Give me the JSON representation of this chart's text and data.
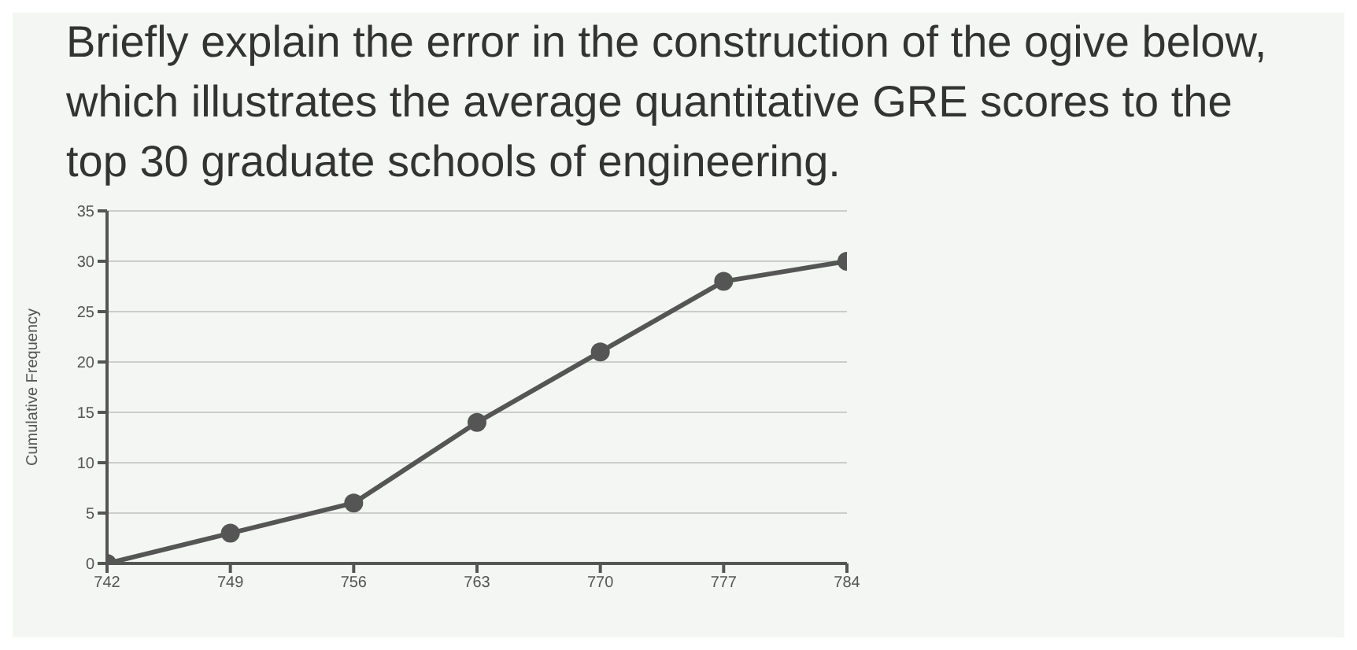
{
  "chart_data": {
    "type": "line",
    "title": "Briefly explain the error in the construction of the ogive below, which illustrates the average quantitative GRE scores to the top 30 graduate schools of engineering.",
    "x": [
      742,
      749,
      756,
      763,
      770,
      777,
      784
    ],
    "values": [
      0,
      3,
      6,
      14,
      21,
      28,
      30
    ],
    "color": "#555555",
    "ylabel": "Cumulative Frequency",
    "xlim": [
      742,
      784
    ],
    "xticks": [
      742,
      749,
      756,
      763,
      770,
      777,
      784
    ],
    "ylim": [
      0,
      35
    ],
    "yticks": [
      0,
      5,
      10,
      15,
      20,
      25,
      30,
      35
    ],
    "grid": "y",
    "marker": "circle",
    "line_style": "solid"
  }
}
